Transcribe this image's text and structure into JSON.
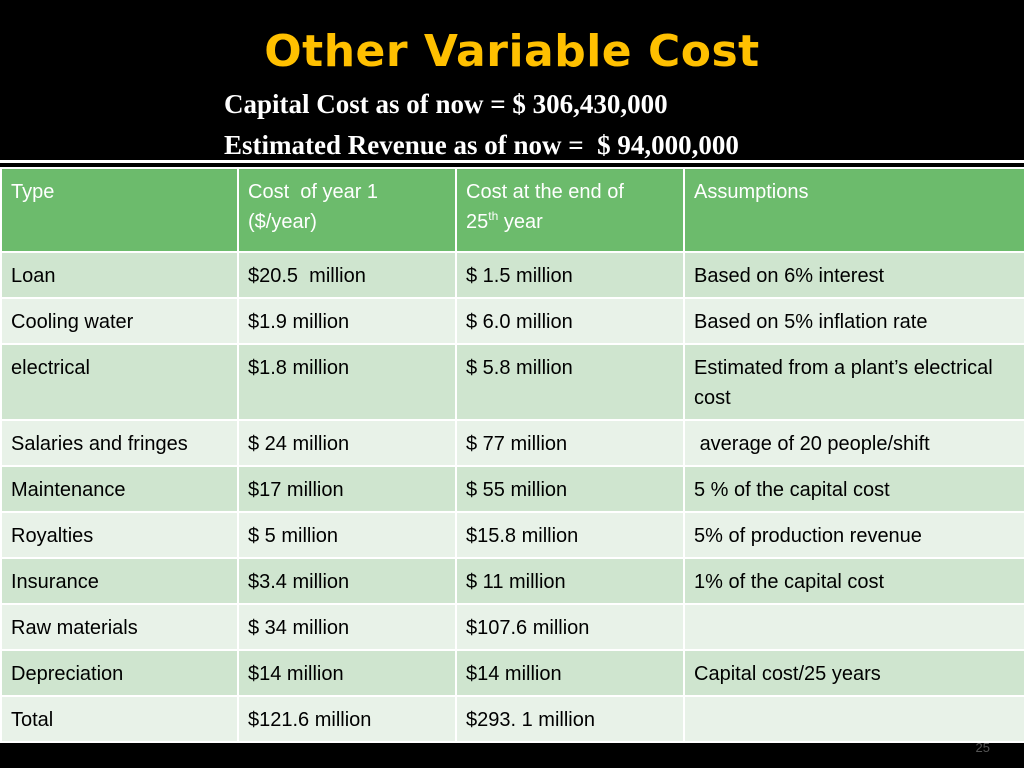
{
  "slide": {
    "title": "Other Variable Cost",
    "capital_cost_line": "Capital Cost as of now = $ 306,430,000",
    "revenue_line": "Estimated Revenue as of now =  $ 94,000,000",
    "page_number": "25"
  },
  "table": {
    "headers": {
      "type": "Type",
      "cost_year1_line1": "Cost  of year 1",
      "cost_year1_line2": "($/year)",
      "cost_end_prefix": "Cost at the end of",
      "cost_end_num": "25",
      "cost_end_sup": "th",
      "cost_end_suffix": " year",
      "assumptions": "Assumptions"
    },
    "rows": [
      {
        "type": "Loan",
        "cost_year1": "$20.5  million",
        "cost_end": "$ 1.5 million",
        "assumptions": "Based on 6% interest"
      },
      {
        "type": "Cooling water",
        "cost_year1": "$1.9 million",
        "cost_end": "$ 6.0 million",
        "assumptions": "Based on 5% inflation rate"
      },
      {
        "type": "electrical",
        "cost_year1": "$1.8 million",
        "cost_end": "$ 5.8 million",
        "assumptions": "Estimated from a plant’s electrical cost"
      },
      {
        "type": "Salaries and fringes",
        "cost_year1": "$ 24 million",
        "cost_end": "$ 77 million",
        "assumptions": " average of 20 people/shift"
      },
      {
        "type": "Maintenance",
        "cost_year1": "$17 million",
        "cost_end": "$ 55 million",
        "assumptions": "5 % of the capital cost"
      },
      {
        "type": "Royalties",
        "cost_year1": "$ 5 million",
        "cost_end": "$15.8 million",
        "assumptions": "5% of production revenue"
      },
      {
        "type": "Insurance",
        "cost_year1": "$3.4 million",
        "cost_end": "$ 11 million",
        "assumptions": "1% of the capital cost"
      },
      {
        "type": "Raw materials",
        "cost_year1": "$ 34 million",
        "cost_end": "$107.6 million",
        "assumptions": ""
      },
      {
        "type": "Depreciation",
        "cost_year1": "$14 million",
        "cost_end": "$14 million",
        "assumptions": "Capital cost/25 years"
      },
      {
        "type": "Total",
        "cost_year1": "$121.6 million",
        "cost_end": "$293. 1 million",
        "assumptions": ""
      }
    ]
  },
  "colors": {
    "background": "#000000",
    "title": "#FFC000",
    "header_fill": "#6CBB6C",
    "row_odd_fill": "#CFE5CF",
    "row_even_fill": "#E8F2E8"
  }
}
